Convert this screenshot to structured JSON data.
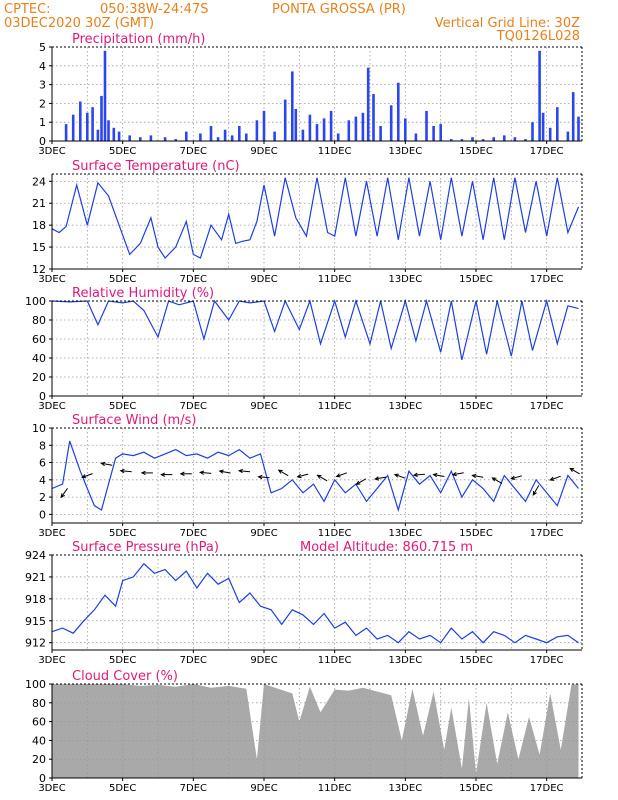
{
  "header": {
    "line1_left": "CPTEC:",
    "line1_coords": "050:38W-24:47S",
    "line1_location": "PONTA GROSSA (PR)",
    "line2_left": "03DEC2020 30Z (GMT)",
    "line2_right": "Vertical Grid Line: 30Z",
    "line3_right": "TQ0126L028"
  },
  "colors": {
    "header": "#e8801c",
    "title": "#e0197d",
    "line": "#1f3fe0",
    "bar": "#2b45f0",
    "cloud": "#a9a9a9",
    "arrow": "#000000"
  },
  "x_ticks": [
    "3DEC",
    "5DEC",
    "7DEC",
    "9DEC",
    "11DEC",
    "13DEC",
    "15DEC",
    "17DEC"
  ],
  "chart_data": [
    {
      "type": "bar",
      "title": "Precipitation (mm/h)",
      "ylim": [
        0,
        5
      ],
      "yticks": [
        0,
        1,
        2,
        3,
        4,
        5
      ],
      "x_days": [
        3.4,
        3.6,
        3.8,
        4.0,
        4.15,
        4.3,
        4.4,
        4.5,
        4.6,
        4.75,
        4.9,
        5.2,
        5.5,
        5.8,
        6.2,
        6.5,
        6.8,
        7.2,
        7.5,
        7.7,
        7.9,
        8.1,
        8.3,
        8.5,
        8.8,
        9.0,
        9.3,
        9.6,
        9.8,
        9.9,
        10.1,
        10.3,
        10.5,
        10.7,
        10.9,
        11.1,
        11.4,
        11.6,
        11.8,
        11.95,
        12.1,
        12.3,
        12.6,
        12.8,
        13.0,
        13.3,
        13.6,
        13.8,
        14.0,
        14.3,
        14.6,
        14.9,
        15.2,
        15.5,
        15.8,
        16.1,
        16.4,
        16.6,
        16.8,
        16.9,
        17.1,
        17.3,
        17.6,
        17.75,
        17.9
      ],
      "values": [
        0.9,
        1.4,
        2.1,
        1.5,
        1.8,
        0.6,
        2.4,
        4.8,
        1.1,
        0.7,
        0.5,
        0.3,
        0.2,
        0.3,
        0.2,
        0.1,
        0.5,
        0.4,
        0.8,
        0.2,
        0.6,
        0.3,
        0.8,
        0.4,
        1.1,
        1.6,
        0.5,
        2.2,
        3.7,
        1.7,
        0.6,
        1.4,
        0.9,
        1.2,
        1.6,
        0.4,
        1.1,
        1.3,
        1.5,
        3.9,
        2.5,
        0.8,
        1.9,
        3.1,
        1.2,
        0.4,
        1.6,
        0.8,
        0.9,
        0.1,
        0.1,
        0.2,
        0.1,
        0.2,
        0.3,
        0.2,
        0.1,
        1.0,
        4.8,
        1.5,
        0.7,
        1.8,
        0.5,
        2.6,
        1.3
      ]
    },
    {
      "type": "line",
      "title": "Surface Temperature (nC)",
      "ylim": [
        12,
        25
      ],
      "yticks": [
        12,
        15,
        18,
        21,
        24
      ],
      "x_days": [
        3.0,
        3.2,
        3.4,
        3.7,
        4.0,
        4.3,
        4.6,
        4.9,
        5.2,
        5.5,
        5.8,
        6.0,
        6.2,
        6.5,
        6.8,
        7.0,
        7.2,
        7.5,
        7.8,
        8.0,
        8.2,
        8.4,
        8.6,
        8.8,
        9.0,
        9.3,
        9.6,
        9.9,
        10.2,
        10.5,
        10.8,
        11.0,
        11.3,
        11.6,
        11.9,
        12.2,
        12.5,
        12.8,
        13.1,
        13.4,
        13.7,
        14.0,
        14.3,
        14.6,
        14.9,
        15.2,
        15.5,
        15.8,
        16.1,
        16.4,
        16.7,
        17.0,
        17.3,
        17.6,
        17.9
      ],
      "values": [
        17.5,
        17.0,
        17.8,
        23.5,
        18.0,
        23.8,
        22.0,
        18.0,
        14.0,
        15.5,
        19.0,
        15.0,
        13.5,
        15.0,
        18.5,
        14.0,
        13.5,
        18.0,
        16.0,
        19.5,
        15.5,
        15.8,
        16.0,
        18.5,
        23.5,
        16.5,
        24.5,
        19.0,
        16.5,
        24.5,
        17.0,
        16.5,
        24.5,
        16.5,
        24.0,
        16.5,
        24.5,
        16.0,
        24.5,
        16.5,
        24.0,
        16.0,
        24.5,
        16.5,
        24.0,
        16.0,
        24.5,
        16.0,
        24.5,
        17.0,
        24.0,
        16.5,
        24.5,
        17.0,
        20.5
      ]
    },
    {
      "type": "line",
      "title": "Relative Humidity (%)",
      "ylim": [
        0,
        100
      ],
      "yticks": [
        0,
        20,
        40,
        60,
        80,
        100
      ],
      "x_days": [
        3.0,
        3.5,
        4.0,
        4.3,
        4.6,
        5.0,
        5.3,
        5.6,
        6.0,
        6.3,
        6.6,
        7.0,
        7.3,
        7.6,
        8.0,
        8.3,
        8.6,
        9.0,
        9.3,
        9.6,
        10.0,
        10.3,
        10.6,
        11.0,
        11.3,
        11.6,
        12.0,
        12.3,
        12.6,
        13.0,
        13.3,
        13.6,
        14.0,
        14.3,
        14.6,
        15.0,
        15.3,
        15.6,
        16.0,
        16.3,
        16.6,
        17.0,
        17.3,
        17.6,
        17.9
      ],
      "values": [
        100,
        99,
        100,
        75,
        100,
        98,
        100,
        90,
        62,
        100,
        96,
        100,
        60,
        100,
        80,
        100,
        98,
        100,
        68,
        100,
        70,
        100,
        55,
        100,
        62,
        100,
        55,
        100,
        50,
        100,
        58,
        100,
        46,
        100,
        38,
        100,
        44,
        100,
        42,
        100,
        48,
        100,
        55,
        95,
        92
      ]
    },
    {
      "type": "line",
      "title": "Surface Wind (m/s)",
      "ylim": [
        -1,
        10
      ],
      "yticks": [
        0,
        2,
        4,
        6,
        8,
        10
      ],
      "x_days": [
        3.0,
        3.3,
        3.5,
        3.8,
        4.0,
        4.2,
        4.4,
        4.6,
        4.8,
        5.0,
        5.3,
        5.6,
        5.9,
        6.2,
        6.5,
        6.8,
        7.1,
        7.4,
        7.7,
        8.0,
        8.3,
        8.6,
        8.9,
        9.2,
        9.5,
        9.8,
        10.1,
        10.4,
        10.7,
        11.0,
        11.3,
        11.6,
        11.9,
        12.2,
        12.5,
        12.8,
        13.1,
        13.4,
        13.7,
        14.0,
        14.3,
        14.6,
        14.9,
        15.2,
        15.5,
        15.8,
        16.1,
        16.4,
        16.7,
        17.0,
        17.3,
        17.6,
        17.9
      ],
      "values": [
        3.0,
        3.5,
        8.5,
        5.0,
        3.0,
        1.0,
        0.5,
        3.5,
        6.5,
        7.0,
        6.8,
        7.2,
        6.5,
        7.0,
        7.5,
        6.8,
        7.0,
        6.5,
        7.2,
        6.8,
        7.5,
        6.5,
        7.0,
        2.5,
        3.0,
        4.0,
        2.5,
        3.5,
        1.5,
        4.0,
        2.5,
        3.5,
        1.5,
        3.0,
        4.5,
        0.5,
        5.0,
        3.5,
        4.5,
        2.5,
        5.0,
        2.0,
        4.0,
        3.0,
        1.5,
        4.5,
        3.0,
        1.5,
        4.0,
        2.5,
        1.0,
        4.5,
        3.0
      ],
      "wind_x_days": [
        3.35,
        4.0,
        4.55,
        5.1,
        5.7,
        6.25,
        6.8,
        7.35,
        7.9,
        8.45,
        9.0,
        9.55,
        10.1,
        10.65,
        11.2,
        11.75,
        12.3,
        12.85,
        13.4,
        13.95,
        14.5,
        15.05,
        15.6,
        16.15,
        16.7,
        17.25,
        17.8
      ],
      "wind_speed": [
        2.5,
        4.5,
        5.8,
        5.0,
        4.8,
        4.6,
        4.7,
        4.8,
        4.9,
        5.0,
        4.3,
        4.8,
        4.5,
        4.2,
        4.6,
        3.8,
        4.2,
        4.4,
        4.6,
        4.5,
        4.7,
        4.4,
        3.9,
        4.3,
        2.8,
        4.2,
        5.0
      ],
      "wind_to_deg": [
        235,
        200,
        170,
        175,
        180,
        180,
        180,
        175,
        170,
        175,
        175,
        150,
        195,
        150,
        200,
        210,
        190,
        160,
        185,
        170,
        190,
        170,
        150,
        195,
        240,
        200,
        150
      ]
    },
    {
      "type": "line",
      "title": "Surface Pressure (hPa)",
      "annotation": "Model Altitude: 860.715 m",
      "ylim": [
        911,
        924
      ],
      "yticks": [
        912,
        915,
        918,
        921,
        924
      ],
      "x_days": [
        3.0,
        3.3,
        3.6,
        3.9,
        4.2,
        4.5,
        4.8,
        5.0,
        5.3,
        5.6,
        5.9,
        6.2,
        6.5,
        6.8,
        7.1,
        7.4,
        7.7,
        8.0,
        8.3,
        8.6,
        8.9,
        9.2,
        9.5,
        9.8,
        10.1,
        10.4,
        10.7,
        11.0,
        11.3,
        11.6,
        11.9,
        12.2,
        12.5,
        12.8,
        13.1,
        13.4,
        13.7,
        14.0,
        14.3,
        14.6,
        14.9,
        15.2,
        15.5,
        15.8,
        16.1,
        16.4,
        16.7,
        17.0,
        17.3,
        17.6,
        17.9
      ],
      "values": [
        913.5,
        914.0,
        913.3,
        915.0,
        916.5,
        918.5,
        917.0,
        920.5,
        921.0,
        922.8,
        921.5,
        922.0,
        920.5,
        921.8,
        919.5,
        921.5,
        920.0,
        920.8,
        917.5,
        918.8,
        917.0,
        916.5,
        914.5,
        916.5,
        915.8,
        914.5,
        916.0,
        914.0,
        914.8,
        913.0,
        914.0,
        912.5,
        913.0,
        912.0,
        913.5,
        912.5,
        913.0,
        912.0,
        914.0,
        912.5,
        913.5,
        912.0,
        913.5,
        913.0,
        912.0,
        913.0,
        912.5,
        912.0,
        912.8,
        913.0,
        912.0
      ]
    },
    {
      "type": "area",
      "title": "Cloud Cover (%)",
      "ylim": [
        0,
        100
      ],
      "yticks": [
        0,
        20,
        40,
        60,
        80,
        100
      ],
      "x_days": [
        3.0,
        5.0,
        5.5,
        6.0,
        6.5,
        7.0,
        7.5,
        8.0,
        8.5,
        8.8,
        9.0,
        9.4,
        9.8,
        10.0,
        10.3,
        10.6,
        11.0,
        11.4,
        11.8,
        12.2,
        12.6,
        12.9,
        13.2,
        13.5,
        13.8,
        14.1,
        14.3,
        14.6,
        14.8,
        15.0,
        15.3,
        15.6,
        15.9,
        16.2,
        16.5,
        16.8,
        17.1,
        17.4,
        17.7,
        17.9
      ],
      "values": [
        100,
        100,
        98,
        99,
        97,
        100,
        96,
        98,
        95,
        20,
        100,
        95,
        90,
        60,
        97,
        70,
        94,
        93,
        96,
        92,
        88,
        40,
        95,
        45,
        92,
        30,
        75,
        10,
        85,
        5,
        80,
        15,
        70,
        20,
        65,
        25,
        90,
        30,
        99,
        100
      ]
    }
  ]
}
